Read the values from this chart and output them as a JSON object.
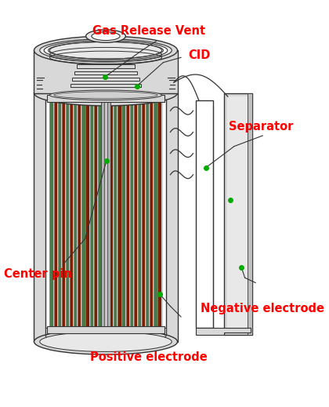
{
  "bg_color": "#ffffff",
  "label_color": "#ff0000",
  "line_color": "#333333",
  "dot_color": "#00aa00",
  "body_color": "#d8d8d8",
  "body_color2": "#e8e8e8",
  "body_color3": "#c0c0c0",
  "green_stripe": "#4a7a4a",
  "red_stripe": "#7a2000",
  "labels": {
    "gas_release_vent": "Gas Release Vent",
    "cid": "CID",
    "separator": "Separator",
    "center_pin": "Center pin",
    "positive_electrode": "Positive electrode",
    "negative_electrode": "Negative electrode"
  },
  "figsize": [
    4.2,
    5.19
  ],
  "dpi": 100
}
